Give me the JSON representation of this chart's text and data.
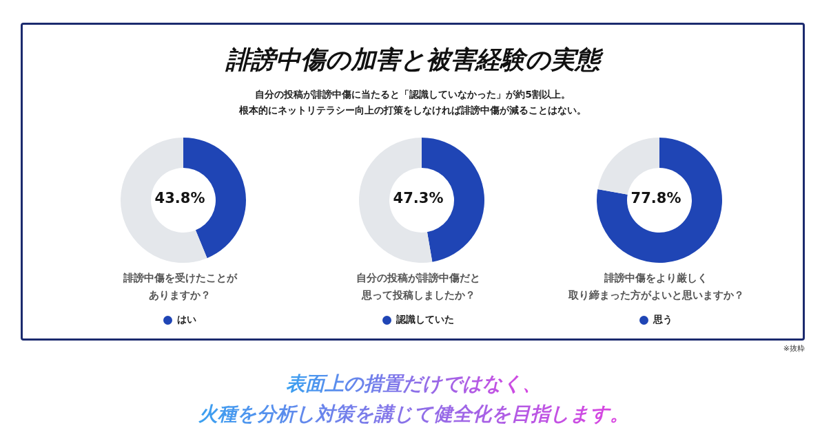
{
  "chart_data": [
    {
      "type": "other",
      "title": "誹謗中傷の加害と被害経験の実態",
      "subtitle": "自分の投稿が誹謗中傷に当たると「認識していなかった」が約5割以上。",
      "annotations": [
        "根本的にネットリテラシー向上の打策をしなければ誹謗中傷が減ることはない。"
      ]
    },
    {
      "type": "donut",
      "title": "誹謗中傷を受けたことがありますか？",
      "categories": [
        "はい",
        null
      ],
      "values": [
        43.8,
        56.2
      ],
      "colors": [
        "#1f45b5",
        "#e4e7eb"
      ],
      "annotations": [
        "43.8%"
      ],
      "legend": "bottom"
    },
    {
      "type": "donut",
      "title": "自分の投稿が誹謗中傷だと思って投稿しましたか？",
      "categories": [
        "認識していた",
        null
      ],
      "values": [
        47.3,
        52.7
      ],
      "colors": [
        "#1f45b5",
        "#e4e7eb"
      ],
      "annotations": [
        "47.3%"
      ],
      "legend": "bottom"
    },
    {
      "type": "donut",
      "title": "誹謗中傷をより厳しく取り締まった方がよいと思いますか？",
      "categories": [
        "思う",
        null
      ],
      "values": [
        77.8,
        22.2
      ],
      "colors": [
        "#1f45b5",
        "#e4e7eb"
      ],
      "annotations": [
        "77.8%"
      ],
      "legend": "bottom"
    },
    {
      "type": "other",
      "annotations": [
        "※抜粋",
        "表面上の措置だけではなく、",
        "火種を分析し対策を講じて健全化を目指します。"
      ]
    }
  ]
}
